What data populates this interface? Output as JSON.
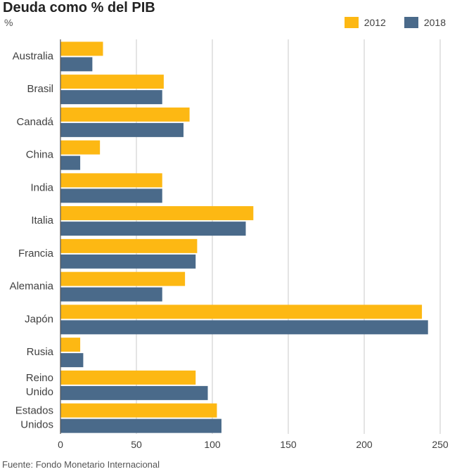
{
  "title": "Deuda como % del PIB",
  "unit": "%",
  "source": "Fuente: Fondo Monetario Internacional",
  "colors": {
    "2012": "#FDB813",
    "2018": "#4A6A8A",
    "grid": "#c8c8c8",
    "axis": "#555555"
  },
  "legend": [
    {
      "label": "2012",
      "color": "#FDB813"
    },
    {
      "label": "2018",
      "color": "#4A6A8A"
    }
  ],
  "chart_data": {
    "type": "bar",
    "orientation": "horizontal",
    "title": "Deuda como % del PIB",
    "xlabel": "",
    "ylabel": "%",
    "xlim": [
      0,
      250
    ],
    "xticks": [
      0,
      50,
      100,
      150,
      200,
      250
    ],
    "grid": true,
    "legend_position": "top-right",
    "categories": [
      [
        "Australia"
      ],
      [
        "Brasil"
      ],
      [
        "Canadá"
      ],
      [
        "China"
      ],
      [
        "India"
      ],
      [
        "Italia"
      ],
      [
        "Francia"
      ],
      [
        "Alemania"
      ],
      [
        "Japón"
      ],
      [
        "Rusia"
      ],
      [
        "Reino",
        "Unido"
      ],
      [
        "Estados",
        "Unidos"
      ]
    ],
    "series": [
      {
        "name": "2012",
        "values": [
          28,
          68,
          85,
          26,
          67,
          127,
          90,
          82,
          238,
          13,
          89,
          103
        ]
      },
      {
        "name": "2018",
        "values": [
          21,
          67,
          81,
          13,
          67,
          122,
          89,
          67,
          242,
          15,
          97,
          106
        ]
      }
    ]
  },
  "source_note": ""
}
